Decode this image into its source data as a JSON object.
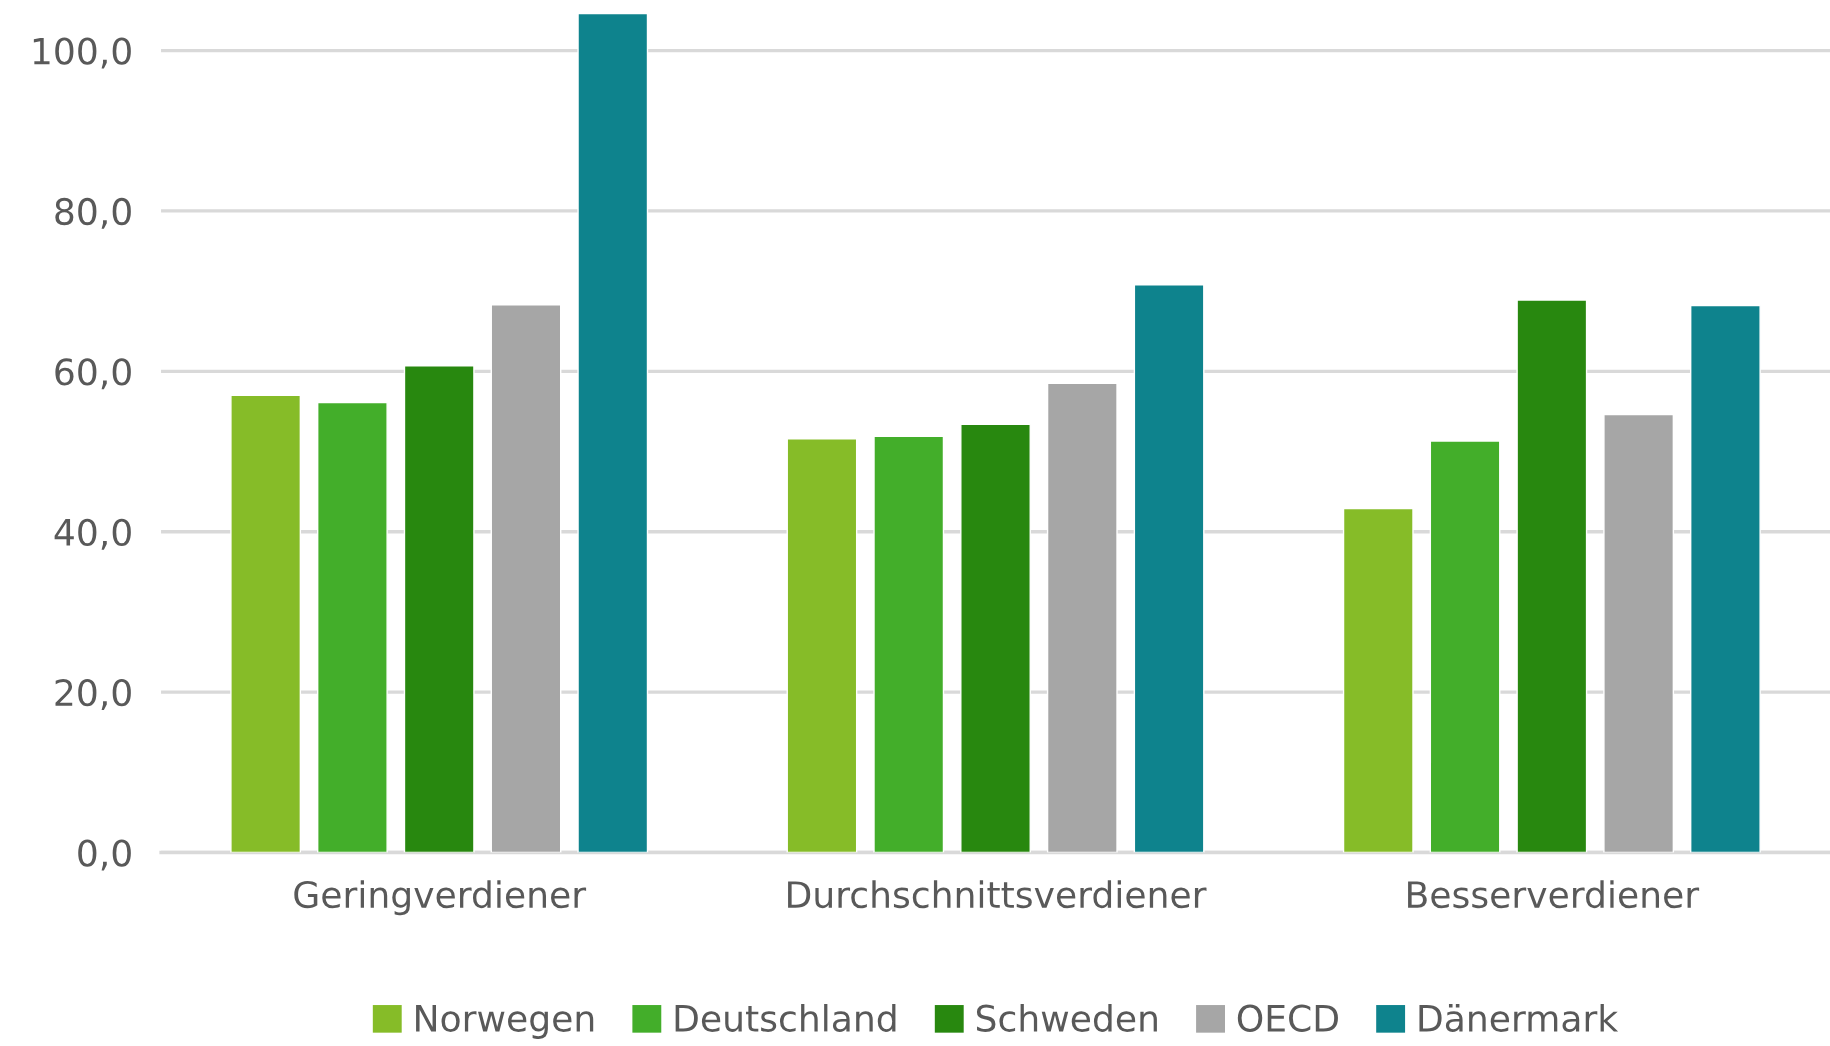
{
  "chart_data": {
    "type": "bar",
    "categories": [
      "Geringverdiener",
      "Durchschnittsverdiener",
      "Besserverdiener"
    ],
    "series": [
      {
        "name": "Norwegen",
        "color": "#86bc28",
        "values": [
          57.0,
          51.6,
          42.9
        ]
      },
      {
        "name": "Deutschland",
        "color": "#43ae2a",
        "values": [
          56.1,
          51.9,
          51.3
        ]
      },
      {
        "name": "Schweden",
        "color": "#28880f",
        "values": [
          60.7,
          53.4,
          68.9
        ]
      },
      {
        "name": "OECD",
        "color": "#a6a6a6",
        "values": [
          68.3,
          58.5,
          54.6
        ]
      },
      {
        "name": "Dänermark",
        "color": "#0e838d",
        "values": [
          104.6,
          70.8,
          68.2
        ]
      }
    ],
    "ylim": [
      0,
      105
    ],
    "yticks": [
      {
        "value": 0,
        "label": "0,0"
      },
      {
        "value": 20,
        "label": "20,0"
      },
      {
        "value": 40,
        "label": "40,0"
      },
      {
        "value": 60,
        "label": "60,0"
      },
      {
        "value": 80,
        "label": "80,0"
      },
      {
        "value": 100,
        "label": "100,0"
      }
    ],
    "grid": "y",
    "legend": "bottom"
  }
}
